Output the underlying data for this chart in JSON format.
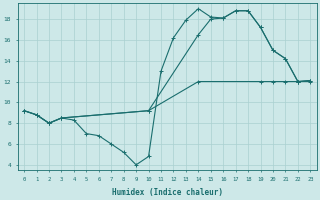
{
  "xlabel": "Humidex (Indice chaleur)",
  "bg_color": "#cde8e8",
  "grid_color": "#aad0d0",
  "line_color": "#1a6e6e",
  "xlim": [
    -0.5,
    23.5
  ],
  "ylim": [
    3.5,
    19.5
  ],
  "xticks": [
    0,
    1,
    2,
    3,
    4,
    5,
    6,
    7,
    8,
    9,
    10,
    11,
    12,
    13,
    14,
    15,
    16,
    17,
    18,
    19,
    20,
    21,
    22,
    23
  ],
  "yticks": [
    4,
    6,
    8,
    10,
    12,
    14,
    16,
    18
  ],
  "line1_x": [
    0,
    1,
    2,
    3,
    4,
    5,
    6,
    7,
    8,
    9,
    10,
    11,
    12,
    13,
    14,
    15,
    16,
    17,
    18,
    19,
    20,
    21,
    22,
    23
  ],
  "line1_y": [
    9.2,
    8.8,
    8.0,
    8.5,
    8.3,
    7.0,
    6.8,
    6.0,
    5.2,
    4.0,
    4.8,
    13.0,
    16.2,
    17.9,
    19.0,
    18.2,
    18.1,
    18.8,
    18.8,
    17.2,
    15.0,
    14.2,
    12.0,
    12.1
  ],
  "line2_x": [
    0,
    1,
    2,
    3,
    10,
    14,
    15,
    16,
    17,
    18,
    19,
    20,
    21,
    22,
    23
  ],
  "line2_y": [
    9.2,
    8.8,
    8.0,
    8.5,
    9.2,
    16.5,
    18.0,
    18.1,
    18.8,
    18.8,
    17.2,
    15.0,
    14.2,
    12.0,
    12.1
  ],
  "line3_x": [
    0,
    1,
    2,
    3,
    10,
    14,
    19,
    20,
    21,
    22,
    23
  ],
  "line3_y": [
    9.2,
    8.8,
    8.0,
    8.5,
    9.2,
    12.0,
    12.0,
    12.0,
    12.0,
    12.0,
    12.0
  ]
}
